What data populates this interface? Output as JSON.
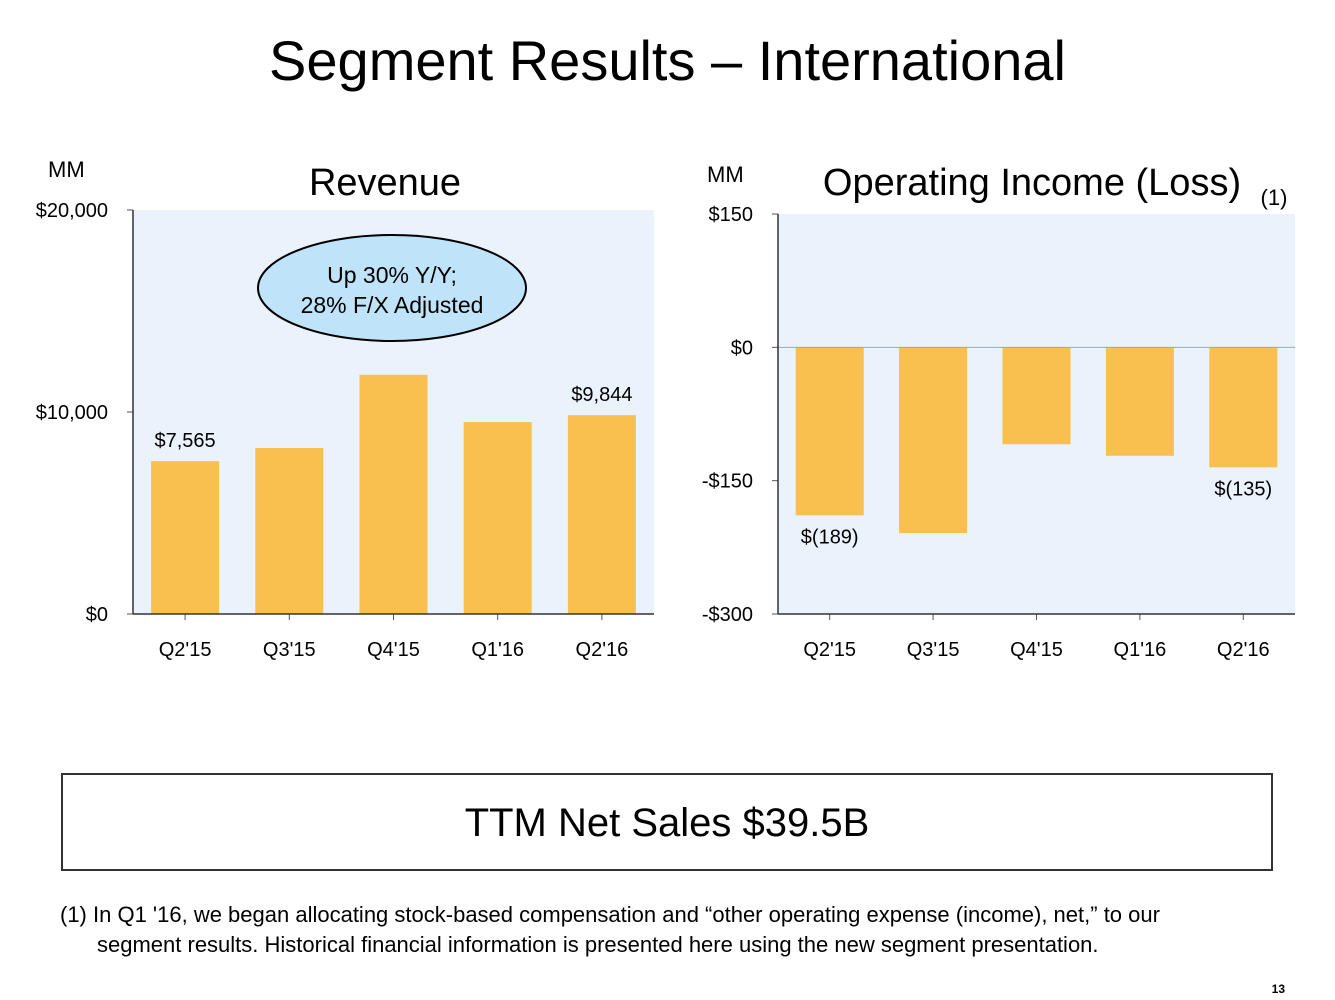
{
  "title": "Segment Results – International",
  "chart_data": [
    {
      "type": "bar",
      "title": "Revenue",
      "unit_label": "MM",
      "categories": [
        "Q2'15",
        "Q3'15",
        "Q4'15",
        "Q1'16",
        "Q2'16"
      ],
      "values": [
        7565,
        8220,
        11840,
        9500,
        9844
      ],
      "data_labels": [
        "$7,565",
        "",
        "",
        "",
        "$9,844"
      ],
      "yticks": [
        {
          "v": 0,
          "label": "$0"
        },
        {
          "v": 10000,
          "label": "$10,000"
        },
        {
          "v": 20000,
          "label": "$20,000"
        }
      ],
      "ylim": [
        0,
        20000
      ],
      "annotation": [
        "Up 30% Y/Y;",
        "28% F/X Adjusted"
      ]
    },
    {
      "type": "bar",
      "title": "Operating Income (Loss)",
      "footnote_marker": "(1)",
      "unit_label": "MM",
      "categories": [
        "Q2'15",
        "Q3'15",
        "Q4'15",
        "Q1'16",
        "Q2'16"
      ],
      "values": [
        -189,
        -209,
        -109,
        -122,
        -135
      ],
      "data_labels": [
        "$(189)",
        "",
        "",
        "",
        "$(135)"
      ],
      "yticks": [
        {
          "v": 150,
          "label": "$150"
        },
        {
          "v": 0,
          "label": "$0"
        },
        {
          "v": -150,
          "label": "-$150"
        },
        {
          "v": -300,
          "label": "-$300"
        }
      ],
      "ylim": [
        -300,
        150
      ]
    }
  ],
  "colors": {
    "bar": "#f9bf4f",
    "plot_bg": "#eaf2fc",
    "bubble": "#bfe3f8"
  },
  "ttm": "TTM Net Sales $39.5B",
  "footnote": [
    "(1) In Q1 '16, we began allocating stock-based compensation and “other operating expense (income), net,” to our",
    "segment results. Historical financial information is presented here using the new segment presentation."
  ],
  "page": "13"
}
